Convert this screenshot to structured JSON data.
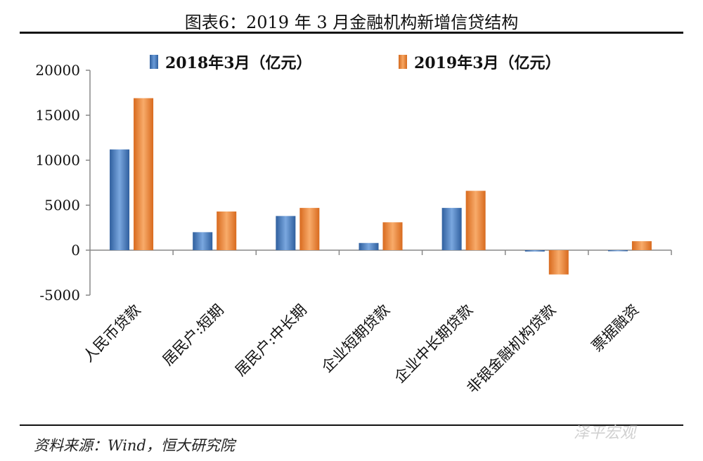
{
  "header": {
    "title": "图表6：2019 年 3 月金融机构新增信贷结构"
  },
  "footer": {
    "source": "资料来源：Wind，恒大研究院",
    "watermark": "泽平宏观"
  },
  "colors": {
    "series_2018": "#4a7fc1",
    "series_2019": "#f08a3c",
    "axis": "#888888"
  },
  "chart_data": {
    "type": "bar",
    "categories": [
      "人民币贷款",
      "居民户:短期",
      "居民户:中长期",
      "企业短期贷款",
      "企业中长期贷款",
      "非银金融机构贷款",
      "票据融资"
    ],
    "series": [
      {
        "name": "2018年3月（亿元）",
        "values": [
          11200,
          2000,
          3800,
          800,
          4700,
          -150,
          -100
        ]
      },
      {
        "name": "2019年3月（亿元）",
        "values": [
          16900,
          4300,
          4700,
          3100,
          6600,
          -2700,
          1000
        ]
      }
    ],
    "yticks": [
      "20000",
      "15000",
      "10000",
      "5000",
      "0",
      "-5000"
    ],
    "ylim": [
      -5000,
      20000
    ],
    "grid": false,
    "legend_position": "top"
  }
}
